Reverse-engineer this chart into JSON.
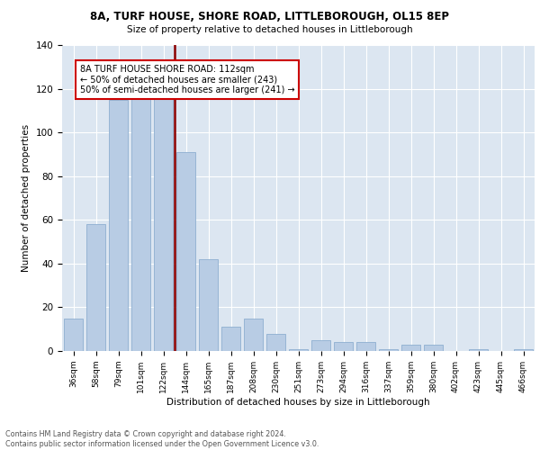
{
  "title1": "8A, TURF HOUSE, SHORE ROAD, LITTLEBOROUGH, OL15 8EP",
  "title2": "Size of property relative to detached houses in Littleborough",
  "xlabel": "Distribution of detached houses by size in Littleborough",
  "ylabel": "Number of detached properties",
  "footer1": "Contains HM Land Registry data © Crown copyright and database right 2024.",
  "footer2": "Contains public sector information licensed under the Open Government Licence v3.0.",
  "categories": [
    "36sqm",
    "58sqm",
    "79sqm",
    "101sqm",
    "122sqm",
    "144sqm",
    "165sqm",
    "187sqm",
    "208sqm",
    "230sqm",
    "251sqm",
    "273sqm",
    "294sqm",
    "316sqm",
    "337sqm",
    "359sqm",
    "380sqm",
    "402sqm",
    "423sqm",
    "445sqm",
    "466sqm"
  ],
  "values": [
    15,
    58,
    115,
    118,
    118,
    91,
    42,
    11,
    15,
    8,
    1,
    5,
    4,
    4,
    1,
    3,
    3,
    0,
    1,
    0,
    1
  ],
  "bar_color": "#b8cce4",
  "bar_edge_color": "#8eafd0",
  "vline_x_index": 4.0,
  "vline_color": "#8b0000",
  "annotation_text": "8A TURF HOUSE SHORE ROAD: 112sqm\n← 50% of detached houses are smaller (243)\n50% of semi-detached houses are larger (241) →",
  "annotation_box_color": "#ffffff",
  "annotation_box_edge": "#cc0000",
  "ylim": [
    0,
    140
  ],
  "yticks": [
    0,
    20,
    40,
    60,
    80,
    100,
    120,
    140
  ],
  "background_color": "#dce6f1",
  "plot_background": "#dce6f1",
  "grid_color": "#ffffff"
}
